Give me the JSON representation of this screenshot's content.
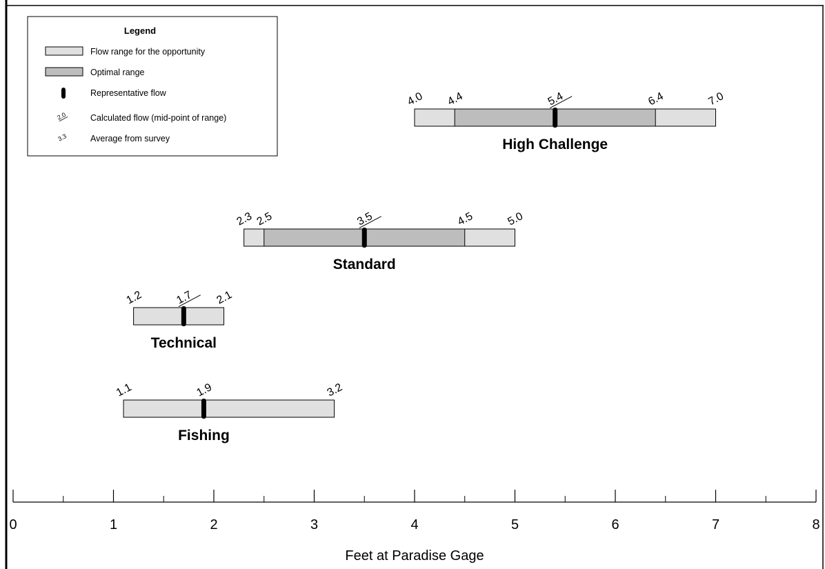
{
  "chart_data": {
    "type": "range",
    "xlabel": "Feet at Paradise Gage",
    "xlim": [
      0,
      8
    ],
    "xticks": [
      0,
      1,
      2,
      3,
      4,
      5,
      6,
      7,
      8
    ],
    "xminorticks": [
      0.5,
      1.5,
      2.5,
      3.5,
      4.5,
      5.5,
      6.5,
      7.5
    ],
    "range_color": "#e0e0e0",
    "optimal_color": "#bdbdbd",
    "legend": {
      "title": "Legend",
      "range": "Flow range for the opportunity",
      "optimal": "Optimal range",
      "representative": "Representative flow",
      "calculated": "Calculated flow (mid-point of range)",
      "calculated_sample": "2.0",
      "average": "Average from survey",
      "average_sample": "3.3"
    },
    "series": [
      {
        "name": "High Challenge",
        "range": [
          {
            "value": 4,
            "label": "4.0"
          },
          {
            "value": 7,
            "label": "7.0"
          }
        ],
        "optimal": [
          4.4,
          6.4
        ],
        "representative": 5.4,
        "calculated": true
      },
      {
        "name": "Standard",
        "range": [
          2.3,
          {
            "value": 5,
            "label": "5.0"
          }
        ],
        "optimal": [
          2.5,
          4.5
        ],
        "representative": 3.5,
        "calculated": true
      },
      {
        "name": "Technical",
        "range": [
          1.2,
          2.1
        ],
        "optimal": null,
        "representative": 1.7,
        "calculated": true
      },
      {
        "name": "Fishing",
        "range": [
          1.1,
          3.2
        ],
        "optimal": null,
        "representative": 1.9,
        "calculated": false
      }
    ]
  }
}
